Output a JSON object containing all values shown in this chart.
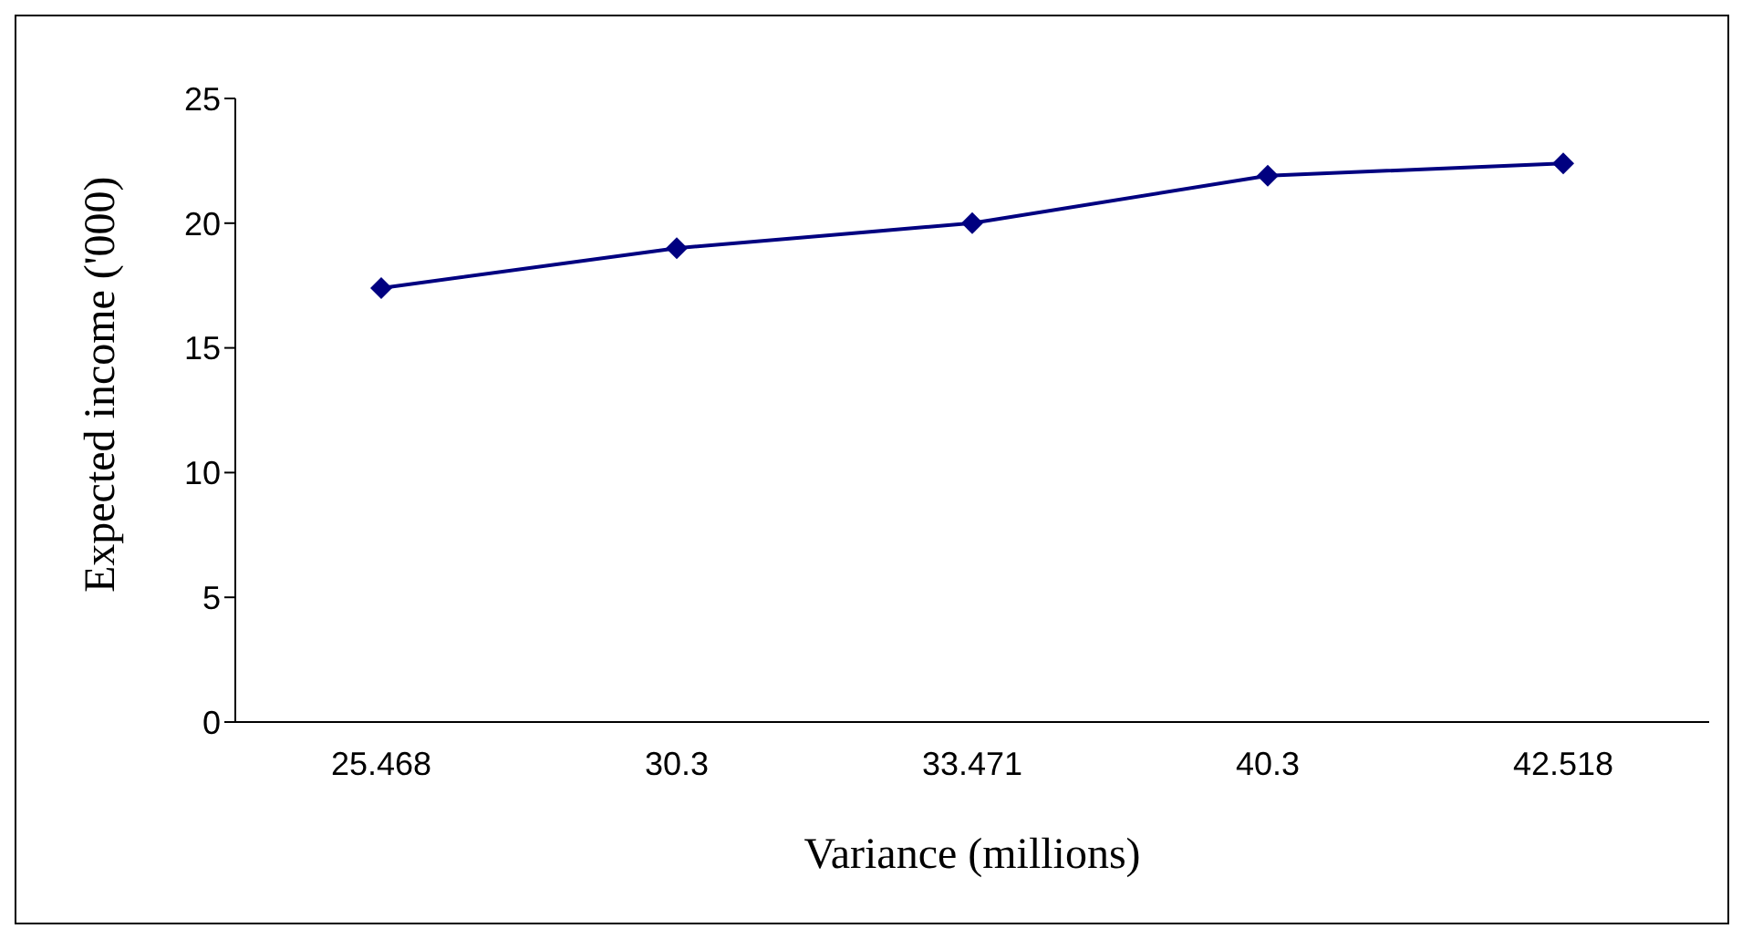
{
  "chart_data": {
    "type": "line",
    "xlabel": "Variance (millions)",
    "ylabel": "Expected income ('000)",
    "categories": [
      "25.468",
      "30.3",
      "33.471",
      "40.3",
      "42.518"
    ],
    "series": [
      {
        "color": "#000080",
        "values": [
          17.4,
          19.0,
          20.0,
          21.9,
          22.4
        ]
      }
    ],
    "ylim": [
      0,
      25
    ],
    "yticks": [
      0,
      5,
      10,
      15,
      20,
      25
    ],
    "grid": false,
    "legend": false,
    "marker": "diamond",
    "line_style": "solid"
  }
}
